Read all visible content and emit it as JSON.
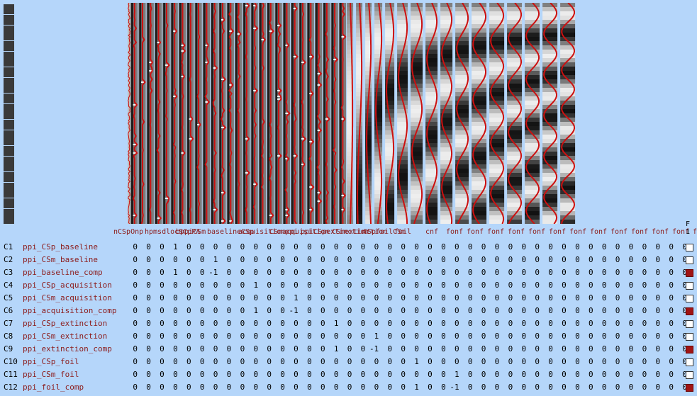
{
  "design_matrix": {
    "scan_count": 42,
    "regressor_labels": [
      "nCSp",
      "CSm",
      "us",
      "ppi",
      "CSp",
      "bas",
      "ppi",
      "CSm",
      "bas",
      "ppi",
      "CSp",
      "acq",
      "ppi",
      "CSm",
      "acq",
      "ppi",
      "CSp",
      "ext",
      "ppi",
      "CSm",
      "ext",
      "ppi",
      "CSp",
      "foil",
      "ppi",
      "CSm",
      "foil",
      "fo",
      "fo",
      "fo",
      "fo",
      "fo",
      "fo",
      "fo",
      "fo",
      "fo",
      "fo",
      "fo",
      "fo",
      "fo",
      "fo",
      "fo",
      "fo",
      "fo",
      "fo",
      "fo"
    ],
    "label_strip": [
      "nCSpOnp",
      "hpmsdlocSCpPA",
      "bppiCSm",
      "baselineCSp",
      "acquisitionppi",
      "CSmacquisition",
      "ppiCSpextinction",
      "CSmextinction",
      "CSpfoilCSm",
      "foil",
      "cnf",
      "fonf",
      "fonf",
      "fonf",
      "fonf",
      "fonf",
      "fonf",
      "fonf",
      "fonf",
      "fonf",
      "fonf",
      "fonf",
      "fonf",
      "fonf",
      "fonf"
    ]
  },
  "ftest_header": {
    "letter": "F",
    "number": "1"
  },
  "contrasts": [
    {
      "id": "C1",
      "name": "ppi_CSp_baseline",
      "weights": [
        "0",
        "0",
        "0",
        "1",
        "0",
        "0",
        "0",
        "0",
        "0",
        "0",
        "0",
        "0",
        "0",
        "0",
        "0",
        "0",
        "0",
        "0",
        "0",
        "0",
        "0",
        "0",
        "0",
        "0",
        "0",
        "0",
        "0",
        "0",
        "0",
        "0",
        "0",
        "0",
        "0",
        "0",
        "0",
        "0",
        "0",
        "0",
        "0",
        "0",
        "0",
        "0"
      ],
      "ftest": false
    },
    {
      "id": "C2",
      "name": "ppi_CSm_baseline",
      "weights": [
        "0",
        "0",
        "0",
        "0",
        "0",
        "0",
        "1",
        "0",
        "0",
        "0",
        "0",
        "0",
        "0",
        "0",
        "0",
        "0",
        "0",
        "0",
        "0",
        "0",
        "0",
        "0",
        "0",
        "0",
        "0",
        "0",
        "0",
        "0",
        "0",
        "0",
        "0",
        "0",
        "0",
        "0",
        "0",
        "0",
        "0",
        "0",
        "0",
        "0",
        "0",
        "0"
      ],
      "ftest": false
    },
    {
      "id": "C3",
      "name": "ppi_baseline_comp",
      "weights": [
        "0",
        "0",
        "0",
        "1",
        "0",
        "0",
        "-1",
        "0",
        "0",
        "0",
        "0",
        "0",
        "0",
        "0",
        "0",
        "0",
        "0",
        "0",
        "0",
        "0",
        "0",
        "0",
        "0",
        "0",
        "0",
        "0",
        "0",
        "0",
        "0",
        "0",
        "0",
        "0",
        "0",
        "0",
        "0",
        "0",
        "0",
        "0",
        "0",
        "0",
        "0",
        "0"
      ],
      "ftest": true
    },
    {
      "id": "C4",
      "name": "ppi_CSp_acquisition",
      "weights": [
        "0",
        "0",
        "0",
        "0",
        "0",
        "0",
        "0",
        "0",
        "0",
        "1",
        "0",
        "0",
        "0",
        "0",
        "0",
        "0",
        "0",
        "0",
        "0",
        "0",
        "0",
        "0",
        "0",
        "0",
        "0",
        "0",
        "0",
        "0",
        "0",
        "0",
        "0",
        "0",
        "0",
        "0",
        "0",
        "0",
        "0",
        "0",
        "0",
        "0",
        "0",
        "0"
      ],
      "ftest": false
    },
    {
      "id": "C5",
      "name": "ppi_CSm_acquisition",
      "weights": [
        "0",
        "0",
        "0",
        "0",
        "0",
        "0",
        "0",
        "0",
        "0",
        "0",
        "0",
        "0",
        "1",
        "0",
        "0",
        "0",
        "0",
        "0",
        "0",
        "0",
        "0",
        "0",
        "0",
        "0",
        "0",
        "0",
        "0",
        "0",
        "0",
        "0",
        "0",
        "0",
        "0",
        "0",
        "0",
        "0",
        "0",
        "0",
        "0",
        "0",
        "0",
        "0"
      ],
      "ftest": false
    },
    {
      "id": "C6",
      "name": "ppi_acquisition_comp",
      "weights": [
        "0",
        "0",
        "0",
        "0",
        "0",
        "0",
        "0",
        "0",
        "0",
        "1",
        "0",
        "0",
        "-1",
        "0",
        "0",
        "0",
        "0",
        "0",
        "0",
        "0",
        "0",
        "0",
        "0",
        "0",
        "0",
        "0",
        "0",
        "0",
        "0",
        "0",
        "0",
        "0",
        "0",
        "0",
        "0",
        "0",
        "0",
        "0",
        "0",
        "0",
        "0",
        "0"
      ],
      "ftest": true
    },
    {
      "id": "C7",
      "name": "ppi_CSp_extinction",
      "weights": [
        "0",
        "0",
        "0",
        "0",
        "0",
        "0",
        "0",
        "0",
        "0",
        "0",
        "0",
        "0",
        "0",
        "0",
        "0",
        "1",
        "0",
        "0",
        "0",
        "0",
        "0",
        "0",
        "0",
        "0",
        "0",
        "0",
        "0",
        "0",
        "0",
        "0",
        "0",
        "0",
        "0",
        "0",
        "0",
        "0",
        "0",
        "0",
        "0",
        "0",
        "0",
        "0"
      ],
      "ftest": false
    },
    {
      "id": "C8",
      "name": "ppi_CSm_extinction",
      "weights": [
        "0",
        "0",
        "0",
        "0",
        "0",
        "0",
        "0",
        "0",
        "0",
        "0",
        "0",
        "0",
        "0",
        "0",
        "0",
        "0",
        "0",
        "0",
        "1",
        "0",
        "0",
        "0",
        "0",
        "0",
        "0",
        "0",
        "0",
        "0",
        "0",
        "0",
        "0",
        "0",
        "0",
        "0",
        "0",
        "0",
        "0",
        "0",
        "0",
        "0",
        "0",
        "0"
      ],
      "ftest": false
    },
    {
      "id": "C9",
      "name": "ppi_extinction_comp",
      "weights": [
        "0",
        "0",
        "0",
        "0",
        "0",
        "0",
        "0",
        "0",
        "0",
        "0",
        "0",
        "0",
        "0",
        "0",
        "0",
        "1",
        "0",
        "0",
        "-1",
        "0",
        "0",
        "0",
        "0",
        "0",
        "0",
        "0",
        "0",
        "0",
        "0",
        "0",
        "0",
        "0",
        "0",
        "0",
        "0",
        "0",
        "0",
        "0",
        "0",
        "0",
        "0",
        "0"
      ],
      "ftest": true
    },
    {
      "id": "C10",
      "name": "ppi_CSp_foil",
      "weights": [
        "0",
        "0",
        "0",
        "0",
        "0",
        "0",
        "0",
        "0",
        "0",
        "0",
        "0",
        "0",
        "0",
        "0",
        "0",
        "0",
        "0",
        "0",
        "0",
        "0",
        "0",
        "1",
        "0",
        "0",
        "0",
        "0",
        "0",
        "0",
        "0",
        "0",
        "0",
        "0",
        "0",
        "0",
        "0",
        "0",
        "0",
        "0",
        "0",
        "0",
        "0",
        "0"
      ],
      "ftest": false
    },
    {
      "id": "C11",
      "name": "ppi_CSm_foil",
      "weights": [
        "0",
        "0",
        "0",
        "0",
        "0",
        "0",
        "0",
        "0",
        "0",
        "0",
        "0",
        "0",
        "0",
        "0",
        "0",
        "0",
        "0",
        "0",
        "0",
        "0",
        "0",
        "0",
        "0",
        "0",
        "1",
        "0",
        "0",
        "0",
        "0",
        "0",
        "0",
        "0",
        "0",
        "0",
        "0",
        "0",
        "0",
        "0",
        "0",
        "0",
        "0",
        "0"
      ],
      "ftest": false
    },
    {
      "id": "C12",
      "name": "ppi_foil_comp",
      "weights": [
        "0",
        "0",
        "0",
        "0",
        "0",
        "0",
        "0",
        "0",
        "0",
        "0",
        "0",
        "0",
        "0",
        "0",
        "0",
        "0",
        "0",
        "0",
        "0",
        "0",
        "0",
        "1",
        "0",
        "0",
        "-1",
        "0",
        "0",
        "0",
        "0",
        "0",
        "0",
        "0",
        "0",
        "0",
        "0",
        "0",
        "0",
        "0",
        "0",
        "0",
        "0",
        "0"
      ],
      "ftest": true
    }
  ],
  "colors": {
    "background": "#b5d6fa",
    "trace": "#cc1010",
    "box_on": "#a01414"
  }
}
